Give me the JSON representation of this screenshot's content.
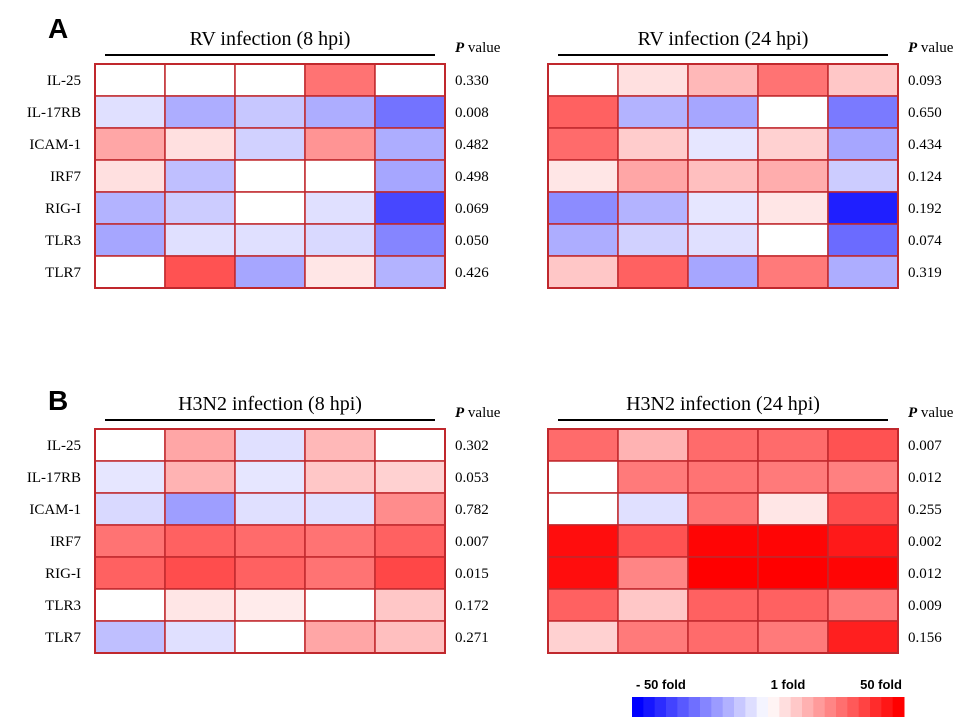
{
  "chart_data": {
    "type": "heatmap",
    "legend": {
      "min_label": "- 50 fold",
      "mid_label": "1 fold",
      "max_label": "50 fold"
    },
    "pvalue_label": {
      "italic": "P",
      "rest": " value"
    },
    "panels": [
      {
        "letter": "A",
        "subpanels": [
          {
            "title": "RV infection (8 hpi)",
            "rows": [
              "IL-25",
              "IL-17RB",
              "ICAM-1",
              "IRF7",
              "RIG-I",
              "TLR3",
              "TLR7"
            ],
            "values": [
              [
                0,
                0,
                0,
                0.55,
                0
              ],
              [
                -0.12,
                -0.32,
                -0.22,
                -0.32,
                -0.55
              ],
              [
                0.35,
                0.12,
                -0.18,
                0.42,
                -0.32
              ],
              [
                0.12,
                -0.25,
                0,
                0,
                -0.35
              ],
              [
                -0.3,
                -0.2,
                0,
                -0.12,
                -0.72
              ],
              [
                -0.35,
                -0.12,
                -0.12,
                -0.15,
                -0.48
              ],
              [
                0,
                0.68,
                -0.35,
                0.1,
                -0.3
              ]
            ],
            "pvalues": [
              "0.330",
              "0.008",
              "0.482",
              "0.498",
              "0.069",
              "0.050",
              "0.426"
            ]
          },
          {
            "title": "RV infection (24 hpi)",
            "rows": [
              "IL-25",
              "IL-17RB",
              "ICAM-1",
              "IRF7",
              "RIG-I",
              "TLR3",
              "TLR7"
            ],
            "values": [
              [
                0,
                0.12,
                0.28,
                0.55,
                0.22
              ],
              [
                0.62,
                -0.3,
                -0.35,
                0,
                -0.52
              ],
              [
                0.58,
                0.2,
                -0.1,
                0.18,
                -0.35
              ],
              [
                0.1,
                0.35,
                0.25,
                0.32,
                -0.2
              ],
              [
                -0.45,
                -0.3,
                -0.1,
                0.1,
                -0.88
              ],
              [
                -0.32,
                -0.18,
                -0.12,
                0,
                -0.58
              ],
              [
                0.22,
                0.62,
                -0.35,
                0.52,
                -0.32
              ]
            ],
            "pvalues": [
              "0.093",
              "0.650",
              "0.434",
              "0.124",
              "0.192",
              "0.074",
              "0.319"
            ]
          }
        ]
      },
      {
        "letter": "B",
        "subpanels": [
          {
            "title": "H3N2 infection (8 hpi)",
            "rows": [
              "IL-25",
              "IL-17RB",
              "ICAM-1",
              "IRF7",
              "RIG-I",
              "TLR3",
              "TLR7"
            ],
            "values": [
              [
                0,
                0.35,
                -0.12,
                0.28,
                0
              ],
              [
                -0.1,
                0.3,
                -0.1,
                0.22,
                0.18
              ],
              [
                -0.15,
                -0.38,
                -0.12,
                -0.12,
                0.45
              ],
              [
                0.55,
                0.62,
                0.58,
                0.55,
                0.62
              ],
              [
                0.62,
                0.7,
                0.62,
                0.55,
                0.72
              ],
              [
                0,
                0.1,
                0.08,
                0,
                0.22
              ],
              [
                -0.25,
                -0.12,
                0,
                0.35,
                0.25
              ]
            ],
            "pvalues": [
              "0.302",
              "0.053",
              "0.782",
              "0.007",
              "0.015",
              "0.172",
              "0.271"
            ]
          },
          {
            "title": "H3N2 infection (24 hpi)",
            "rows": [
              "IL-25",
              "IL-17RB",
              "ICAM-1",
              "IRF7",
              "RIG-I",
              "TLR3",
              "TLR7"
            ],
            "values": [
              [
                0.58,
                0.3,
                0.58,
                0.58,
                0.68
              ],
              [
                0,
                0.52,
                0.55,
                0.52,
                0.5
              ],
              [
                0,
                -0.12,
                0.55,
                0.1,
                0.7
              ],
              [
                0.95,
                0.68,
                0.98,
                0.98,
                0.9
              ],
              [
                0.95,
                0.48,
                1.0,
                1.0,
                0.98
              ],
              [
                0.62,
                0.22,
                0.62,
                0.62,
                0.52
              ],
              [
                0.18,
                0.52,
                0.58,
                0.52,
                0.88
              ]
            ],
            "pvalues": [
              "0.007",
              "0.012",
              "0.255",
              "0.002",
              "0.012",
              "0.009",
              "0.156"
            ]
          }
        ]
      }
    ]
  }
}
